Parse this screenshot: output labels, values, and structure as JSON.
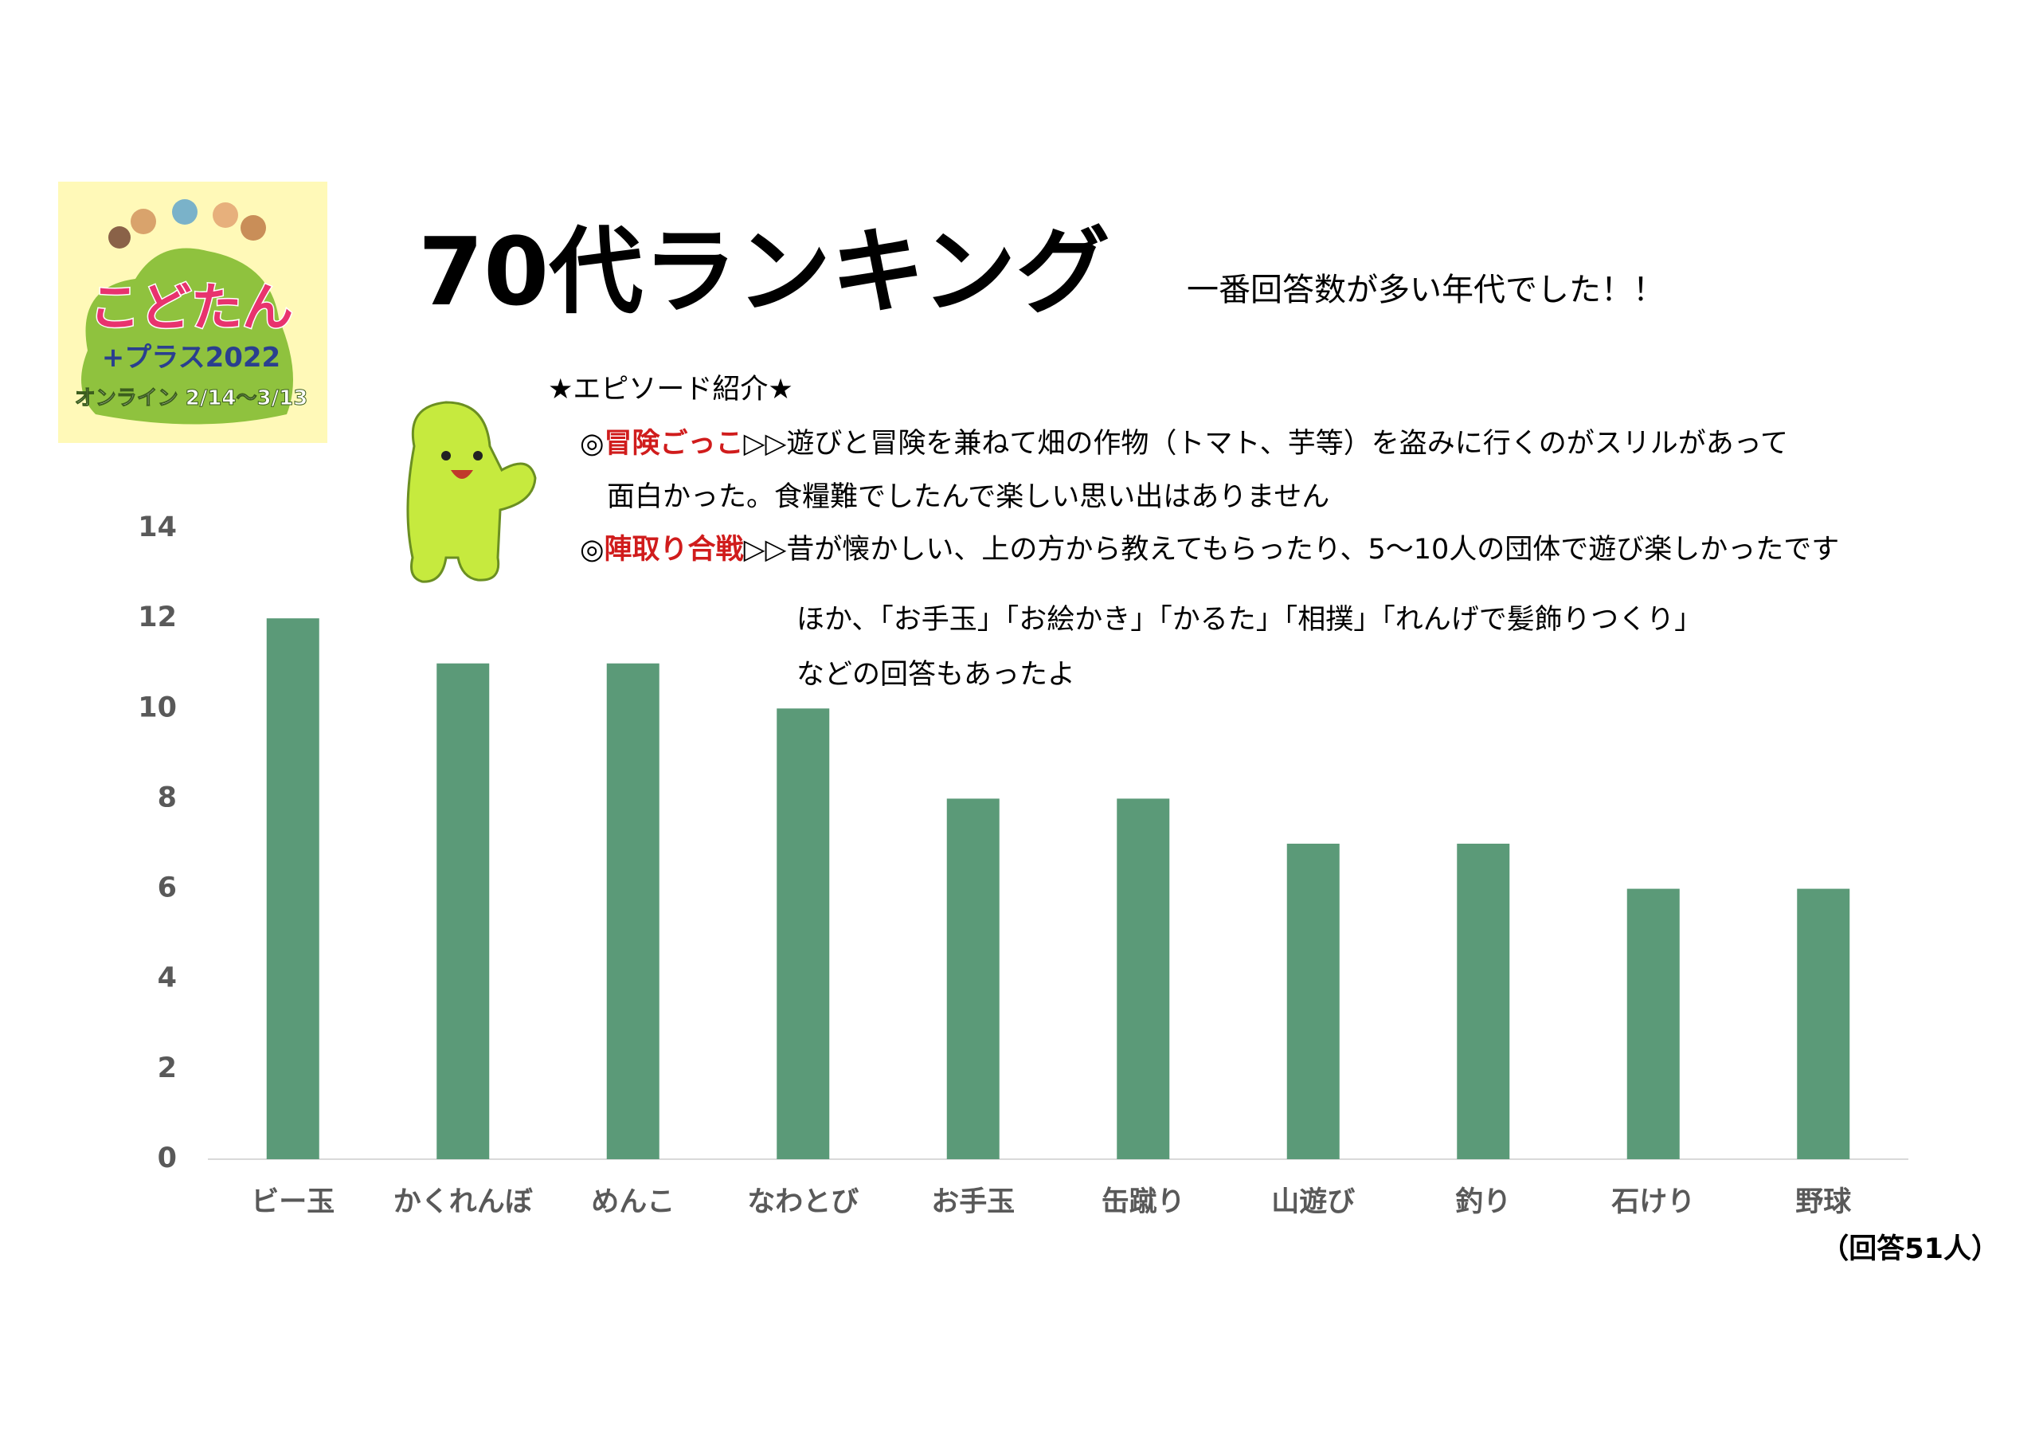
{
  "logo": {
    "name": "こどたん",
    "plus": "+プラス2022",
    "period": "オンライン 2/14〜3/13"
  },
  "chart_data": {
    "type": "bar",
    "title": "70代ランキング",
    "subtitle": "一番回答数が多い年代でした！！",
    "categories": [
      "ビー玉",
      "かくれんぼ",
      "めんこ",
      "なわとび",
      "お手玉",
      "缶蹴り",
      "山遊び",
      "釣り",
      "石けり",
      "野球"
    ],
    "values": [
      12,
      11,
      11,
      10,
      8,
      8,
      7,
      7,
      6,
      6
    ],
    "color": "#5b9a78",
    "ylim": [
      0,
      14
    ],
    "yticks": [
      0,
      2,
      4,
      6,
      8,
      10,
      12,
      14
    ],
    "grid": false,
    "note": "（回答51人）"
  },
  "episodes": {
    "heading": "★エピソード紹介★",
    "items": [
      {
        "mark": "◎",
        "name": "冒険ごっこ",
        "lines": [
          "▷▷遊びと冒険を兼ねて畑の作物（トマト、芋等）を盗みに行くのがスリルがあって",
          "面白かった。食糧難でしたんで楽しい思い出はありません"
        ]
      },
      {
        "mark": "◎",
        "name": "陣取り合戦",
        "lines": [
          "▷▷昔が懐かしい、上の方から教えてもらったり、5〜10人の団体で遊び楽しかったです"
        ]
      }
    ],
    "others": [
      "ほか、「お手玉」「お絵かき」「かるた」「相撲」「れんげで髪飾りつくり」",
      "などの回答もあったよ"
    ]
  }
}
